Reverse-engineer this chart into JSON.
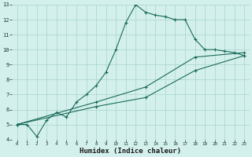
{
  "title": "",
  "xlabel": "Humidex (Indice chaleur)",
  "ylabel": "",
  "background_color": "#d4f0ec",
  "grid_color": "#aed8d2",
  "line_color": "#1a6b5a",
  "xlim": [
    -0.5,
    23.5
  ],
  "ylim": [
    4,
    13
  ],
  "xticks": [
    0,
    1,
    2,
    3,
    4,
    5,
    6,
    7,
    8,
    9,
    10,
    11,
    12,
    13,
    14,
    15,
    16,
    17,
    18,
    19,
    20,
    21,
    22,
    23
  ],
  "yticks": [
    4,
    5,
    6,
    7,
    8,
    9,
    10,
    11,
    12,
    13
  ],
  "series1_x": [
    0,
    1,
    2,
    3,
    4,
    5,
    6,
    7,
    8,
    9,
    10,
    11,
    12,
    13,
    14,
    15,
    16,
    17,
    18,
    19,
    20,
    21,
    22,
    23
  ],
  "series1_y": [
    5.0,
    5.0,
    4.2,
    5.3,
    5.8,
    5.5,
    6.5,
    7.0,
    7.6,
    8.5,
    10.0,
    11.8,
    13.0,
    12.5,
    12.3,
    12.2,
    12.0,
    12.0,
    10.7,
    10.0,
    10.0,
    9.9,
    9.8,
    9.6
  ],
  "series2_x": [
    0,
    8,
    13,
    18,
    23
  ],
  "series2_y": [
    5.0,
    6.5,
    7.5,
    9.5,
    9.8
  ],
  "series3_x": [
    0,
    8,
    13,
    18,
    23
  ],
  "series3_y": [
    5.0,
    6.2,
    6.8,
    8.6,
    9.6
  ],
  "marker": "+"
}
